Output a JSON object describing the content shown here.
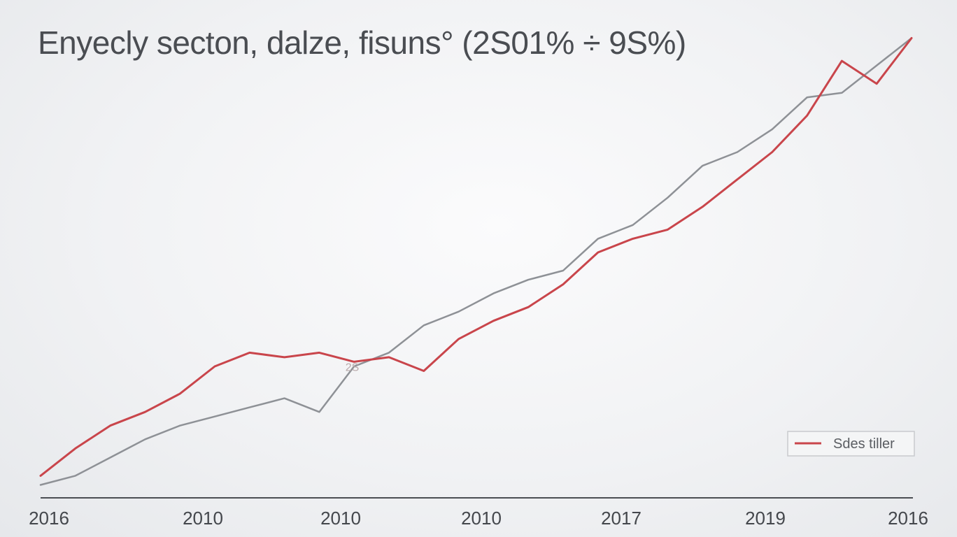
{
  "chart_data": {
    "type": "line",
    "title": "Enyecly secton, dalze, fisuns° (2S01% ÷ 9S%)",
    "xlabel": "",
    "ylabel": "",
    "x_ticks": [
      "2016",
      "2010",
      "2010",
      "2010",
      "2017",
      "2019",
      "2016"
    ],
    "x": [
      0,
      4,
      8,
      12,
      16,
      20,
      24,
      28,
      32,
      36,
      40,
      44,
      48,
      52,
      56,
      60,
      64,
      68,
      72,
      76,
      80,
      84,
      88,
      92,
      96,
      100
    ],
    "xlim": [
      0,
      100
    ],
    "ylim": [
      0,
      100
    ],
    "grid": false,
    "legend": {
      "position": "bottom-right",
      "entries": [
        "Sdes tiller"
      ]
    },
    "annotations": [
      {
        "text": "2S",
        "x": 35,
        "y": 26
      }
    ],
    "series": [
      {
        "name": "Sdes tiller",
        "color": "#c9454b",
        "values": [
          3,
          9,
          14,
          17,
          21,
          27,
          30,
          29,
          30,
          28,
          29,
          26,
          33,
          37,
          40,
          45,
          52,
          55,
          57,
          62,
          68,
          74,
          82,
          94,
          89,
          99
        ]
      },
      {
        "name": "",
        "color": "#8e9196",
        "values": [
          1,
          3,
          7,
          11,
          14,
          16,
          18,
          20,
          17,
          27,
          30,
          36,
          39,
          43,
          46,
          48,
          55,
          58,
          64,
          71,
          74,
          79,
          86,
          87,
          93,
          99
        ]
      }
    ]
  }
}
